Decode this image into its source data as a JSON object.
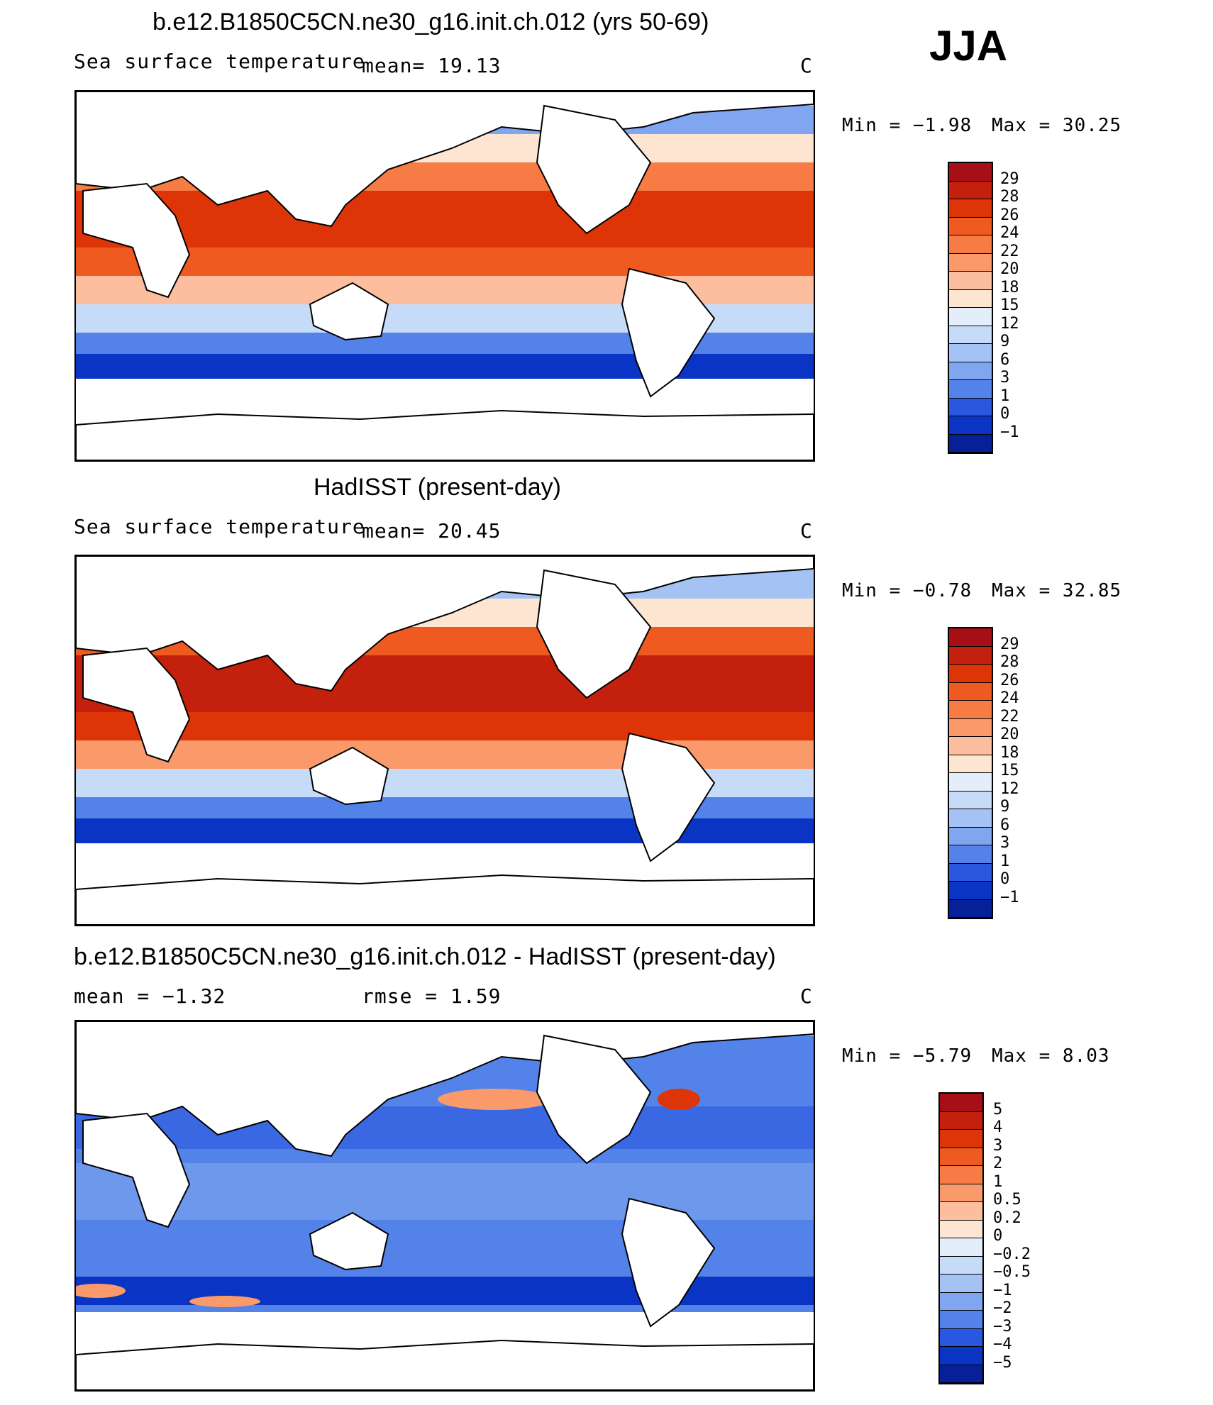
{
  "season": "JJA",
  "panels": [
    {
      "title": "b.e12.B1850C5CN.ne30_g16.init.ch.012 (yrs 50-69)",
      "left_label": "Sea surface temperature",
      "center_label": "mean=   19.13",
      "units": "C",
      "min_text": "Min =   −1.98",
      "max_text": "Max =   30.25",
      "levels": [
        "29",
        "28",
        "26",
        "24",
        "22",
        "20",
        "18",
        "15",
        "12",
        "9",
        "6",
        "3",
        "1",
        "0",
        "−1"
      ],
      "colors": [
        "#a50f15",
        "#c4200e",
        "#de3508",
        "#ef5a21",
        "#f67b45",
        "#fa9a6a",
        "#fcbe9e",
        "#fde5d2",
        "#e4eefb",
        "#c6dbf7",
        "#a4c2f4",
        "#7fa6ef",
        "#5382e8",
        "#2957df",
        "#0a35c4",
        "#06209a"
      ]
    },
    {
      "title": "HadISST (present-day)",
      "left_label": "Sea surface temperature",
      "center_label": "mean=   20.45",
      "units": "C",
      "min_text": "Min =   −0.78",
      "max_text": "Max =   32.85",
      "levels": [
        "29",
        "28",
        "26",
        "24",
        "22",
        "20",
        "18",
        "15",
        "12",
        "9",
        "6",
        "3",
        "1",
        "0",
        "−1"
      ],
      "colors": [
        "#a50f15",
        "#c4200e",
        "#de3508",
        "#ef5a21",
        "#f67b45",
        "#fa9a6a",
        "#fcbe9e",
        "#fde5d2",
        "#e4eefb",
        "#c6dbf7",
        "#a4c2f4",
        "#7fa6ef",
        "#5382e8",
        "#2957df",
        "#0a35c4",
        "#06209a"
      ]
    },
    {
      "title": "b.e12.B1850C5CN.ne30_g16.init.ch.012 - HadISST (present-day)",
      "left_label": "mean =   −1.32",
      "center_label": "rmse =    1.59",
      "units": "C",
      "min_text": "Min =   −5.79",
      "max_text": "Max =    8.03",
      "levels": [
        "5",
        "4",
        "3",
        "2",
        "1",
        "0.5",
        "0.2",
        "0",
        "−0.2",
        "−0.5",
        "−1",
        "−2",
        "−3",
        "−4",
        "−5"
      ],
      "colors": [
        "#a50f15",
        "#c4200e",
        "#de3508",
        "#ef5a21",
        "#f67b45",
        "#fa9a6a",
        "#fcbe9e",
        "#fde5d2",
        "#e4eefb",
        "#c6dbf7",
        "#a4c2f4",
        "#7fa6ef",
        "#5382e8",
        "#2957df",
        "#0a35c4",
        "#06209a"
      ]
    }
  ]
}
